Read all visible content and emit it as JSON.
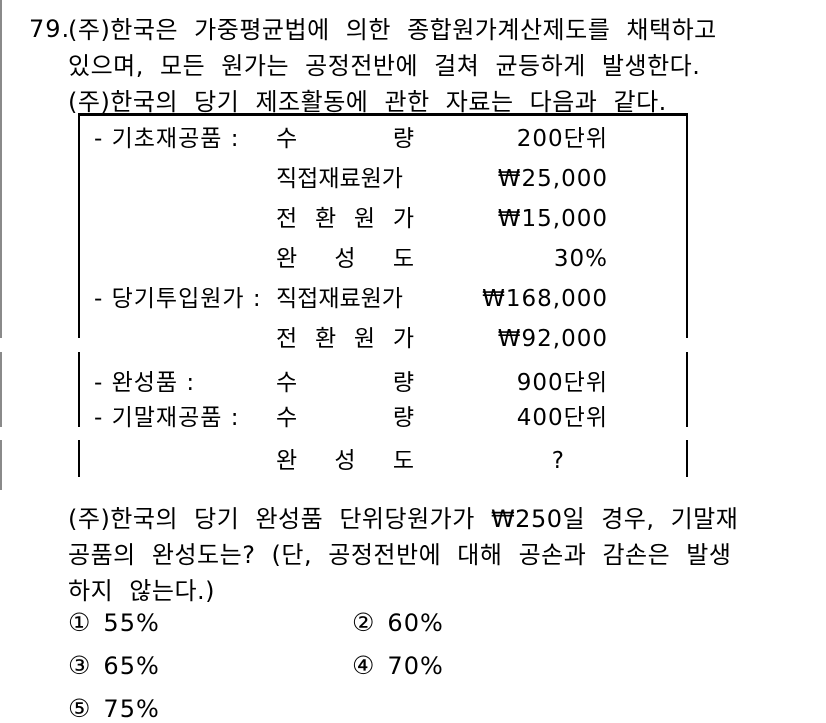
{
  "question": {
    "number": "79.",
    "intro_lines": [
      "(주)한국은 가중평균법에 의한 종합원가계산제도를 채택하고",
      "있으며, 모든 원가는 공정전반에 걸쳐 균등하게 발생한다.",
      "(주)한국의 당기 제조활동에 관한 자료는 다음과 같다."
    ],
    "body_lines": [
      "(주)한국의 당기 완성품 단위당원가가 ₩250일 경우, 기말재",
      "공품의 완성도는? (단, 공정전반에 대해 공손과 감손은 발생",
      "하지 않는다.)"
    ]
  },
  "data_box": {
    "fragment1_rows": [
      {
        "item": "- 기초재공품 :",
        "sub": "수 량",
        "value": "200단위"
      },
      {
        "item": "",
        "sub": "직접재료원가",
        "value": "₩25,000"
      },
      {
        "item": "",
        "sub": "전 환 원 가",
        "value": "₩15,000"
      },
      {
        "item": "",
        "sub": "완 성 도",
        "value": "30%"
      },
      {
        "item": "- 당기투입원가 :",
        "sub": "직접재료원가",
        "value": "₩168,000"
      },
      {
        "item": "",
        "sub": "전 환 원 가",
        "value": "₩92,000"
      }
    ],
    "fragment2_rows": [
      {
        "item": "- 완성품 :",
        "sub": "수 량",
        "value": "900단위"
      },
      {
        "item": "- 기말재공품 :",
        "sub": "수 량",
        "value": "400단위"
      }
    ],
    "fragment3_rows": [
      {
        "item": "",
        "sub": "완 성 도",
        "value": "?"
      }
    ]
  },
  "options": [
    {
      "marker": "①",
      "label": "55%"
    },
    {
      "marker": "②",
      "label": "60%"
    },
    {
      "marker": "③",
      "label": "65%"
    },
    {
      "marker": "④",
      "label": "70%"
    },
    {
      "marker": "⑤",
      "label": "75%"
    }
  ],
  "colors": {
    "text": "#000000",
    "box_border": "#000000",
    "left_page_rule": "#8a8a8a",
    "right_page_rule": "#555555"
  }
}
